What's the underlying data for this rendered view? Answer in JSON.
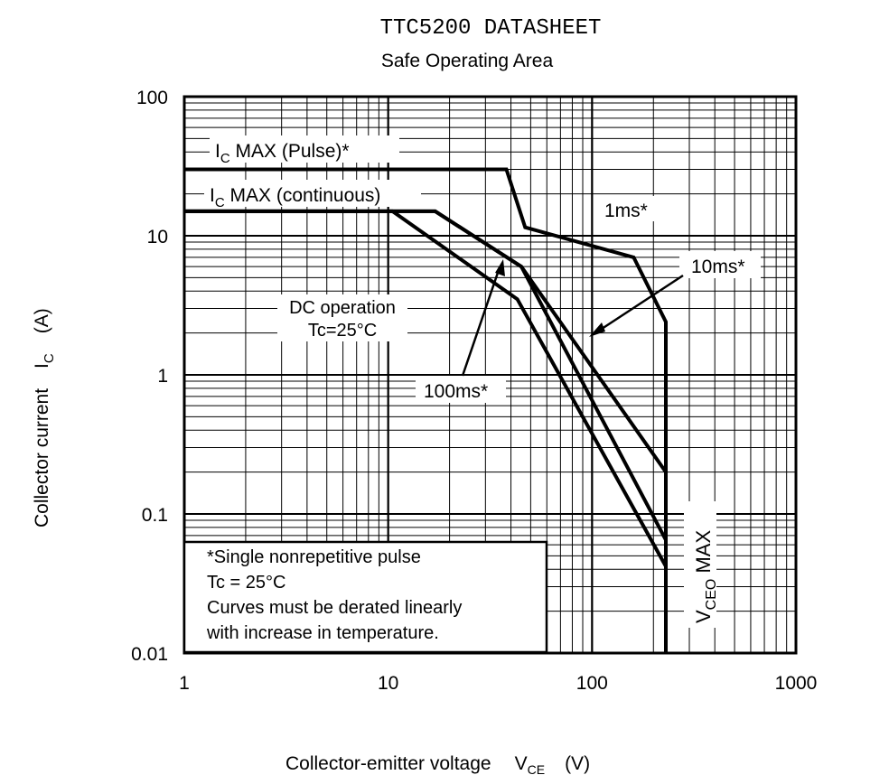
{
  "chart_data": {
    "type": "line",
    "title": "TTC5200 DATASHEET",
    "subtitle": "Safe Operating Area",
    "xlabel": "Collector-emitter voltage",
    "xlabel_symbol": "V",
    "xlabel_sub": "CE",
    "xlabel_unit": "(V)",
    "ylabel": "Collector current",
    "ylabel_symbol": "I",
    "ylabel_sub": "C",
    "ylabel_unit": "(A)",
    "xscale": "log",
    "yscale": "log",
    "xlim": [
      1,
      1000
    ],
    "ylim": [
      0.01,
      100
    ],
    "grid": true,
    "x_ticks": [
      {
        "value": 1,
        "label": "1"
      },
      {
        "value": 10,
        "label": "10"
      },
      {
        "value": 100,
        "label": "100"
      },
      {
        "value": 1000,
        "label": "1000"
      }
    ],
    "y_ticks": [
      {
        "value": 100,
        "label": "100"
      },
      {
        "value": 10,
        "label": "10"
      },
      {
        "value": 1,
        "label": "1"
      },
      {
        "value": 0.1,
        "label": "0.1"
      },
      {
        "value": 0.01,
        "label": "0.01"
      }
    ],
    "series": [
      {
        "key": "s1ms",
        "points": [
          [
            1,
            30
          ],
          [
            38,
            30
          ],
          [
            47,
            11.5
          ],
          [
            160,
            7
          ],
          [
            230,
            2.4
          ],
          [
            230,
            0.01
          ]
        ]
      },
      {
        "key": "s10ms",
        "points": [
          [
            1,
            15
          ],
          [
            17,
            15
          ],
          [
            45,
            6
          ],
          [
            230,
            0.2
          ]
        ]
      },
      {
        "key": "s100ms",
        "points": [
          [
            1,
            15
          ],
          [
            17,
            15
          ],
          [
            45,
            6
          ],
          [
            230,
            0.065
          ]
        ]
      },
      {
        "key": "sdc",
        "points": [
          [
            1,
            15
          ],
          [
            10.5,
            15
          ],
          [
            43,
            3.5
          ],
          [
            230,
            0.042
          ]
        ]
      }
    ],
    "annotations": {
      "ic_max_pulse": {
        "prefix": "I",
        "sub": "C",
        "text": " MAX (Pulse)*"
      },
      "ic_max_cont": {
        "prefix": "I",
        "sub": "C",
        "text": " MAX (continuous)"
      },
      "ms1": "1ms*",
      "ms10": "10ms*",
      "ms100": "100ms*",
      "dc_line1": "DC operation",
      "dc_line2": "Tc=25°C",
      "vceo_prefix": "V",
      "vceo_sub": "CEO",
      "vceo_text": " MAX"
    },
    "note": [
      "*Single nonrepetitive pulse",
      "Tc = 25°C",
      "Curves must be derated linearly",
      "with increase in temperature."
    ]
  }
}
